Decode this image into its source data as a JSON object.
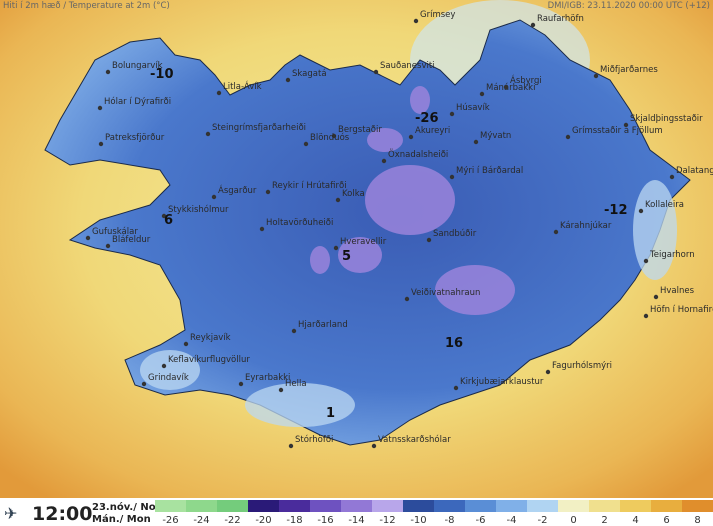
{
  "header": {
    "title": "Hiti í 2m hæð / Temperature at 2m (°C)",
    "source": "DMI/IGB: 23.11.2020 00:00 UTC (+12)"
  },
  "places": [
    "Grímsey",
    "Raufarhöfn",
    "Bolungarvík",
    "Skagatá",
    "Sauðanesviti",
    "Mánárbakki",
    "Ásbyrgi",
    "Miðfjarðarnes",
    "Litla-Ávík",
    "Hólar í Dýrafirði",
    "Húsavík",
    "Steingrímsfjarðarheiði",
    "Bergstaðir",
    "Akureyri",
    "Mývatn",
    "Grímsstaðir á Fjöllum",
    "Skjaldþingsstaðir",
    "Patreksfjörður",
    "Blönduós",
    "Öxnadalsheiði",
    "Mýri í Bárðardal",
    "Dalatangi",
    "Ásgarður",
    "Reykir í Hrútafirði",
    "Kolka",
    "Stykkishólmur",
    "Kollaleira",
    "Gufuskálar",
    "Holtavörðuheiði",
    "Kárahnjúkar",
    "Bláfeldur",
    "Hveravellir",
    "Sandbúðir",
    "Teigarhorn",
    "Veiðivatnahraun",
    "Hvalnes",
    "Höfn í Hornafirði",
    "Hjarðarland",
    "Reykjavík",
    "Keflavíkurflugvöllur",
    "Fagurhólsmýri",
    "Grindavík",
    "Eyrarbakki",
    "Hella",
    "Kirkjubæjarklaustur",
    "Stórhöfði",
    "Vatnsskarðshólar"
  ],
  "values": [
    "-10",
    "-26",
    "-12",
    "6",
    "5",
    "16",
    "1"
  ],
  "footer": {
    "time": "12:00",
    "date": "23.nóv./ Nov",
    "day": "Mán./ Mon"
  },
  "legend": {
    "ticks": [
      -26,
      -24,
      -22,
      -20,
      -18,
      -16,
      -14,
      -12,
      -10,
      -8,
      -6,
      -4,
      -2,
      0,
      2,
      4,
      6,
      8
    ],
    "colors": [
      "#a8e2a0",
      "#8ed88c",
      "#74cc7c",
      "#2a1a78",
      "#4a2c9c",
      "#6e52c0",
      "#9278d6",
      "#b8a6ea",
      "#2c4c9c",
      "#3c68bc",
      "#5a8ed6",
      "#80b0e8",
      "#b0d4f2",
      "#f2f0c4",
      "#f0e08e",
      "#eecb5e",
      "#e8ae3e",
      "#e08e2c"
    ]
  }
}
